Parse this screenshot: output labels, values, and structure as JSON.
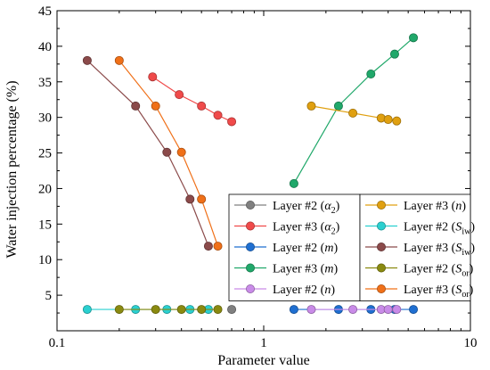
{
  "chart_data": {
    "type": "scatter",
    "title": "",
    "xlabel": "Parameter value",
    "ylabel": "Water injection percentage (%)",
    "x_scale": "log",
    "xlim": [
      0.1,
      10
    ],
    "ylim": [
      0,
      45
    ],
    "x_ticks": [
      0.1,
      1,
      10
    ],
    "x_tick_labels": [
      "0.1",
      "1",
      "10"
    ],
    "y_ticks": [
      0,
      5,
      10,
      15,
      20,
      25,
      30,
      35,
      40,
      45
    ],
    "y_tick_labels": [
      "",
      "5",
      "10",
      "15",
      "20",
      "25",
      "30",
      "35",
      "40",
      "45"
    ],
    "grid": false,
    "legend_position": "bottom-right",
    "series": [
      {
        "name": "Layer #2 (α2)",
        "label_main": "Layer #2 (",
        "label_italic": "α",
        "label_sub": "2",
        "label_end": ")",
        "color": "#808080",
        "points": [
          [
            0.7,
            3.0
          ]
        ]
      },
      {
        "name": "Layer #3 (α2)",
        "label_main": "Layer #3 (",
        "label_italic": "α",
        "label_sub": "2",
        "label_end": ")",
        "color": "#f04a4a",
        "points": [
          [
            0.29,
            35.7
          ],
          [
            0.39,
            33.2
          ],
          [
            0.5,
            31.6
          ],
          [
            0.6,
            30.3
          ],
          [
            0.7,
            29.4
          ]
        ]
      },
      {
        "name": "Layer #2 (m)",
        "label_main": "Layer #2 (",
        "label_italic": "m",
        "label_sub": "",
        "label_end": ")",
        "color": "#1f6fd1",
        "points": [
          [
            1.4,
            3.0
          ],
          [
            2.3,
            3.0
          ],
          [
            3.3,
            3.0
          ],
          [
            4.3,
            3.0
          ],
          [
            5.3,
            3.0
          ]
        ]
      },
      {
        "name": "Layer #3 (m)",
        "label_main": "Layer #3 (",
        "label_italic": "m",
        "label_sub": "",
        "label_end": ")",
        "color": "#20a86a",
        "points": [
          [
            1.4,
            20.7
          ],
          [
            2.3,
            31.6
          ],
          [
            3.3,
            36.1
          ],
          [
            4.3,
            38.9
          ],
          [
            5.3,
            41.2
          ]
        ]
      },
      {
        "name": "Layer #2 (n)",
        "label_main": "Layer #2 (",
        "label_italic": "n",
        "label_sub": "",
        "label_end": ")",
        "color": "#c98be8",
        "points": [
          [
            1.7,
            3.0
          ],
          [
            2.7,
            3.0
          ],
          [
            3.7,
            3.0
          ],
          [
            4.0,
            3.0
          ],
          [
            4.4,
            3.0
          ]
        ]
      },
      {
        "name": "Layer #3 (n)",
        "label_main": "Layer #3 (",
        "label_italic": "n",
        "label_sub": "",
        "label_end": ")",
        "color": "#e0a010",
        "points": [
          [
            1.7,
            31.6
          ],
          [
            2.7,
            30.6
          ],
          [
            3.7,
            29.9
          ],
          [
            4.0,
            29.7
          ],
          [
            4.4,
            29.5
          ]
        ]
      },
      {
        "name": "Layer #2 (Siw)",
        "label_main": "Layer #2 (",
        "label_italic": "S",
        "label_sub": "iw",
        "label_end": ")",
        "color": "#2ad0d0",
        "points": [
          [
            0.14,
            3.0
          ],
          [
            0.24,
            3.0
          ],
          [
            0.34,
            3.0
          ],
          [
            0.44,
            3.0
          ],
          [
            0.54,
            3.0
          ]
        ]
      },
      {
        "name": "Layer #3 (Siw)",
        "label_main": "Layer #3 (",
        "label_italic": "S",
        "label_sub": "iw",
        "label_end": ")",
        "color": "#8b4a4a",
        "points": [
          [
            0.14,
            38.0
          ],
          [
            0.24,
            31.6
          ],
          [
            0.34,
            25.1
          ],
          [
            0.44,
            18.5
          ],
          [
            0.54,
            11.9
          ]
        ]
      },
      {
        "name": "Layer #2 (Sor)",
        "label_main": "Layer #2 (",
        "label_italic": "S",
        "label_sub": "or",
        "label_end": ")",
        "color": "#8a8a10",
        "points": [
          [
            0.2,
            3.0
          ],
          [
            0.3,
            3.0
          ],
          [
            0.4,
            3.0
          ],
          [
            0.5,
            3.0
          ],
          [
            0.6,
            3.0
          ]
        ]
      },
      {
        "name": "Layer #3 (Sor)",
        "label_main": "Layer #3 (",
        "label_italic": "S",
        "label_sub": "or",
        "label_end": ")",
        "color": "#f07018",
        "points": [
          [
            0.2,
            38.0
          ],
          [
            0.3,
            31.6
          ],
          [
            0.4,
            25.1
          ],
          [
            0.5,
            18.5
          ],
          [
            0.6,
            11.9
          ]
        ]
      }
    ]
  }
}
